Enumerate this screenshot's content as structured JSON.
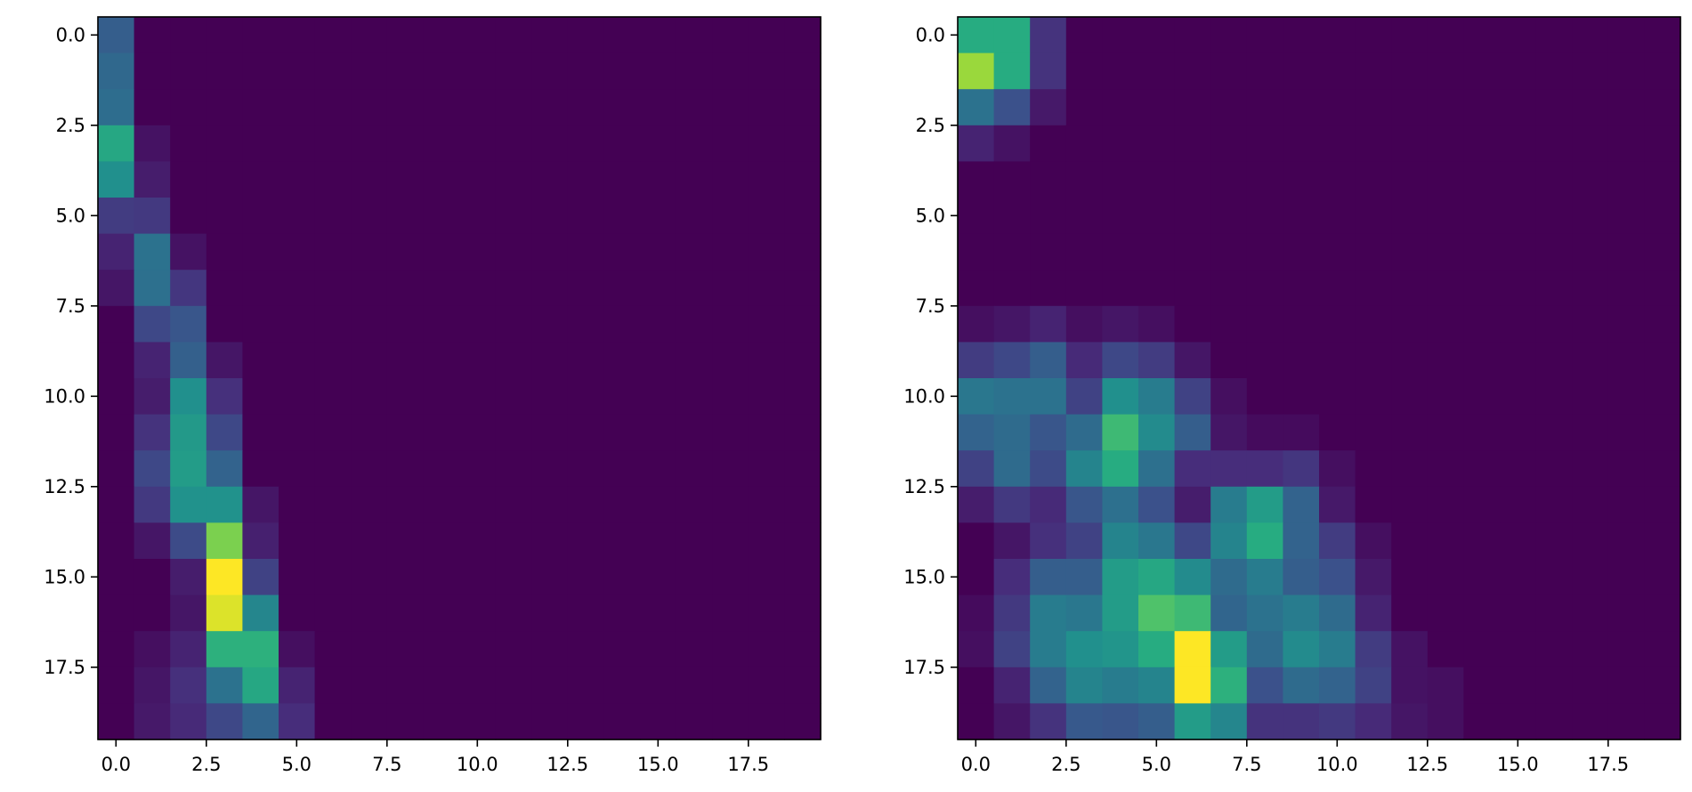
{
  "chart_data": [
    {
      "type": "heatmap",
      "colormap": "viridis",
      "rows": 20,
      "cols": 20,
      "x_ticks": [
        "0.0",
        "2.5",
        "5.0",
        "7.5",
        "10.0",
        "12.5",
        "15.0",
        "17.5"
      ],
      "y_ticks": [
        "0.0",
        "2.5",
        "5.0",
        "7.5",
        "10.0",
        "12.5",
        "15.0",
        "17.5"
      ],
      "xlim": [
        -0.5,
        19.5
      ],
      "ylim": [
        19.5,
        -0.5
      ],
      "vmin": 0,
      "vmax": 1,
      "cells": [
        [
          0.3
        ],
        [
          0.34
        ],
        [
          0.36
        ],
        [
          0.6,
          0.05
        ],
        [
          0.5,
          0.08
        ],
        [
          0.18,
          0.17
        ],
        [
          0.1,
          0.38,
          0.05
        ],
        [
          0.06,
          0.37,
          0.16
        ],
        [
          0.0,
          0.22,
          0.27
        ],
        [
          0.0,
          0.1,
          0.31,
          0.06
        ],
        [
          0.0,
          0.08,
          0.5,
          0.14
        ],
        [
          0.0,
          0.15,
          0.54,
          0.22
        ],
        [
          0.0,
          0.22,
          0.55,
          0.32
        ],
        [
          0.0,
          0.17,
          0.51,
          0.51,
          0.06
        ],
        [
          0.0,
          0.06,
          0.23,
          0.8,
          0.09
        ],
        [
          0.0,
          0.0,
          0.08,
          1.0,
          0.2
        ],
        [
          0.0,
          0.0,
          0.06,
          0.95,
          0.46
        ],
        [
          0.0,
          0.04,
          0.1,
          0.64,
          0.64,
          0.04
        ],
        [
          0.0,
          0.06,
          0.14,
          0.38,
          0.6,
          0.1
        ],
        [
          0.0,
          0.07,
          0.12,
          0.22,
          0.33,
          0.13
        ]
      ]
    },
    {
      "type": "heatmap",
      "colormap": "viridis",
      "rows": 20,
      "cols": 20,
      "x_ticks": [
        "0.0",
        "2.5",
        "5.0",
        "7.5",
        "10.0",
        "12.5",
        "15.0",
        "17.5"
      ],
      "y_ticks": [
        "0.0",
        "2.5",
        "5.0",
        "7.5",
        "10.0",
        "12.5",
        "15.0",
        "17.5"
      ],
      "xlim": [
        -0.5,
        19.5
      ],
      "ylim": [
        19.5,
        -0.5
      ],
      "vmin": 0,
      "vmax": 1,
      "cells": [
        [
          0.62,
          0.62,
          0.15
        ],
        [
          0.85,
          0.62,
          0.15
        ],
        [
          0.38,
          0.25,
          0.07
        ],
        [
          0.1,
          0.05
        ],
        [],
        [],
        [],
        [],
        [
          0.04,
          0.06,
          0.1,
          0.04,
          0.06,
          0.04
        ],
        [
          0.18,
          0.22,
          0.3,
          0.12,
          0.22,
          0.18,
          0.06
        ],
        [
          0.4,
          0.38,
          0.38,
          0.2,
          0.5,
          0.42,
          0.2,
          0.04
        ],
        [
          0.32,
          0.35,
          0.27,
          0.35,
          0.68,
          0.48,
          0.3,
          0.06,
          0.03,
          0.03
        ],
        [
          0.2,
          0.35,
          0.23,
          0.45,
          0.62,
          0.37,
          0.13,
          0.13,
          0.13,
          0.16,
          0.04
        ],
        [
          0.08,
          0.17,
          0.12,
          0.27,
          0.37,
          0.25,
          0.08,
          0.42,
          0.55,
          0.32,
          0.07
        ],
        [
          0.0,
          0.06,
          0.14,
          0.2,
          0.45,
          0.4,
          0.22,
          0.45,
          0.62,
          0.32,
          0.18,
          0.04
        ],
        [
          0.0,
          0.13,
          0.3,
          0.3,
          0.55,
          0.6,
          0.48,
          0.35,
          0.42,
          0.3,
          0.25,
          0.07
        ],
        [
          0.03,
          0.17,
          0.42,
          0.4,
          0.55,
          0.72,
          0.68,
          0.33,
          0.38,
          0.42,
          0.35,
          0.1
        ],
        [
          0.04,
          0.2,
          0.42,
          0.5,
          0.52,
          0.62,
          1.0,
          0.55,
          0.35,
          0.48,
          0.42,
          0.18,
          0.05
        ],
        [
          0.0,
          0.1,
          0.32,
          0.45,
          0.42,
          0.45,
          1.0,
          0.64,
          0.25,
          0.35,
          0.32,
          0.2,
          0.05,
          0.04
        ],
        [
          0.0,
          0.06,
          0.15,
          0.28,
          0.27,
          0.3,
          0.55,
          0.46,
          0.15,
          0.15,
          0.17,
          0.12,
          0.06,
          0.04
        ]
      ]
    }
  ]
}
